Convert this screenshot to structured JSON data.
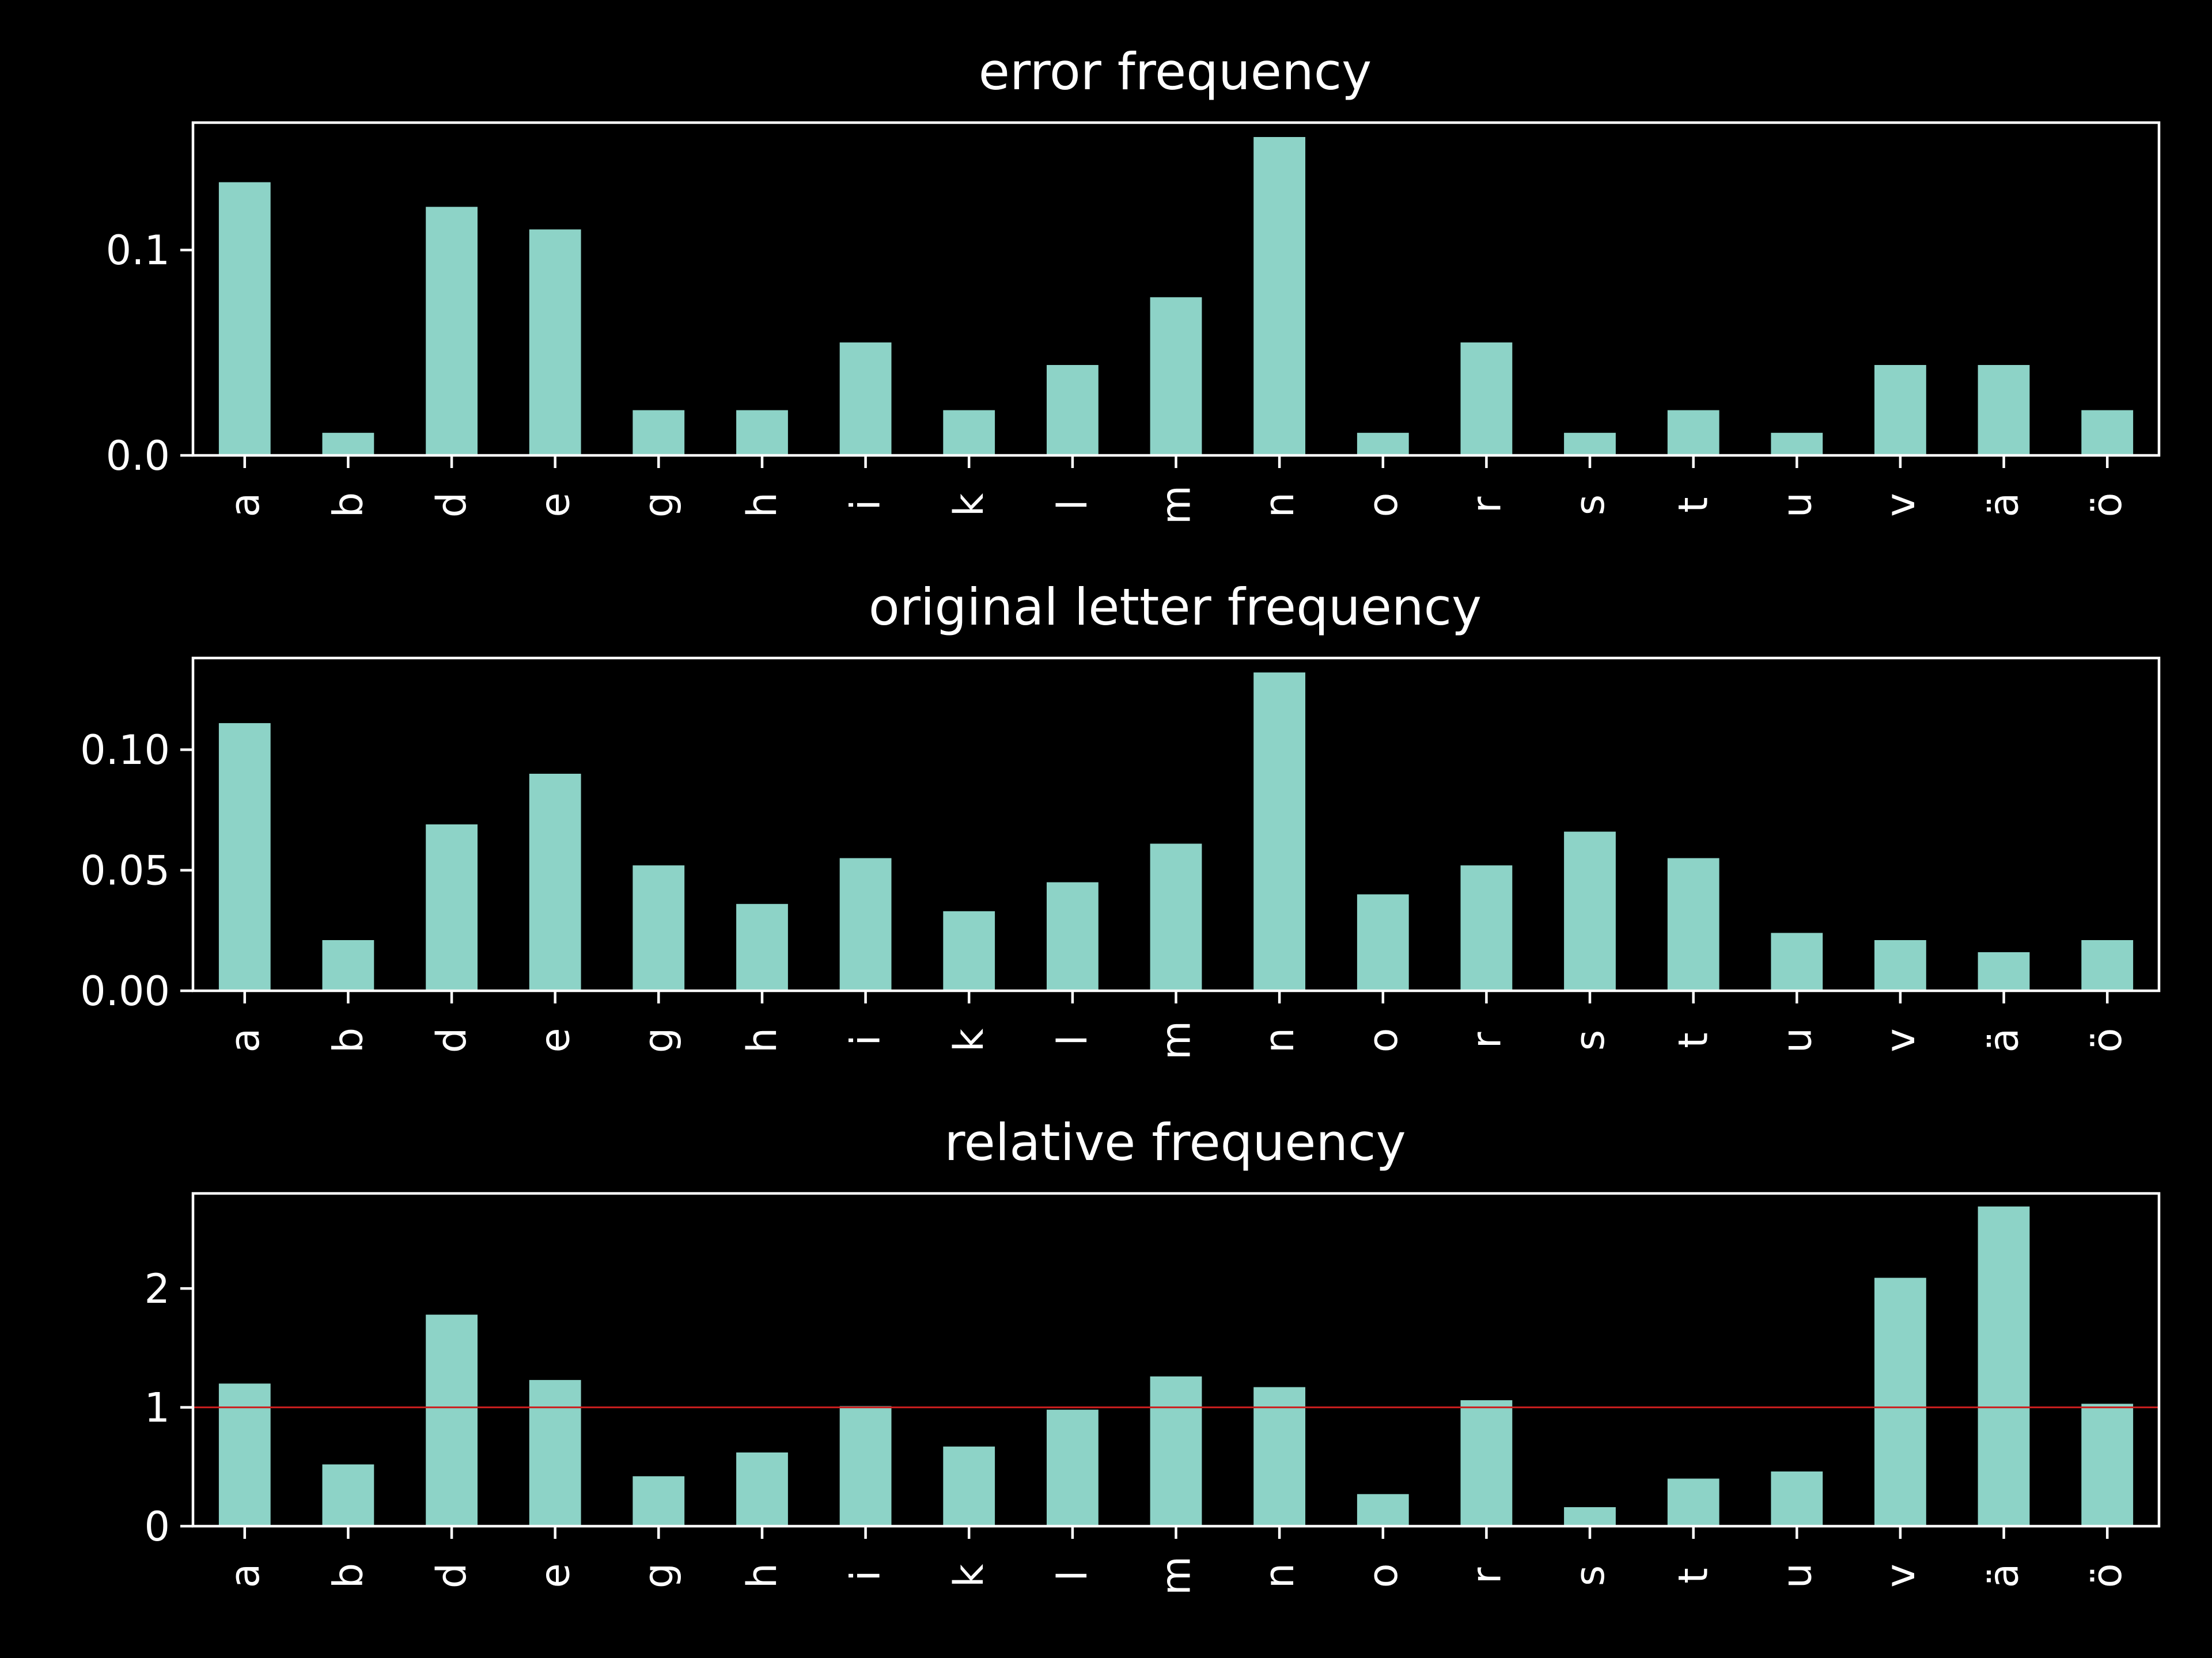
{
  "chart_data": [
    {
      "type": "bar",
      "title": "error frequency",
      "xlabel": "",
      "ylabel": "",
      "categories": [
        "a",
        "b",
        "d",
        "e",
        "g",
        "h",
        "i",
        "k",
        "l",
        "m",
        "n",
        "o",
        "r",
        "s",
        "t",
        "u",
        "v",
        "ä",
        "ö"
      ],
      "values": [
        0.133,
        0.011,
        0.121,
        0.11,
        0.022,
        0.022,
        0.055,
        0.022,
        0.044,
        0.077,
        0.155,
        0.011,
        0.055,
        0.011,
        0.022,
        0.011,
        0.044,
        0.044,
        0.022
      ],
      "ylim": [
        0,
        0.162
      ],
      "yticks": [
        0.0,
        0.1
      ],
      "ytick_labels": [
        "0.0",
        "0.1"
      ],
      "bar_color": "#8dd3c7",
      "grid": false,
      "legend": false
    },
    {
      "type": "bar",
      "title": "original letter frequency",
      "xlabel": "",
      "ylabel": "",
      "categories": [
        "a",
        "b",
        "d",
        "e",
        "g",
        "h",
        "i",
        "k",
        "l",
        "m",
        "n",
        "o",
        "r",
        "s",
        "t",
        "u",
        "v",
        "ä",
        "ö"
      ],
      "values": [
        0.111,
        0.021,
        0.069,
        0.09,
        0.052,
        0.036,
        0.055,
        0.033,
        0.045,
        0.061,
        0.132,
        0.04,
        0.052,
        0.066,
        0.055,
        0.024,
        0.021,
        0.016,
        0.021
      ],
      "ylim": [
        0,
        0.138
      ],
      "yticks": [
        0.0,
        0.05,
        0.1
      ],
      "ytick_labels": [
        "0.00",
        "0.05",
        "0.10"
      ],
      "bar_color": "#8dd3c7",
      "grid": false,
      "legend": false
    },
    {
      "type": "bar",
      "title": "relative frequency",
      "xlabel": "",
      "ylabel": "",
      "categories": [
        "a",
        "b",
        "d",
        "e",
        "g",
        "h",
        "i",
        "k",
        "l",
        "m",
        "n",
        "o",
        "r",
        "s",
        "t",
        "u",
        "v",
        "ä",
        "ö"
      ],
      "values": [
        1.2,
        0.52,
        1.78,
        1.23,
        0.42,
        0.62,
        1.01,
        0.67,
        0.98,
        1.26,
        1.17,
        0.27,
        1.06,
        0.16,
        0.4,
        0.46,
        2.09,
        2.69,
        1.03
      ],
      "ylim": [
        0,
        2.8
      ],
      "yticks": [
        0,
        1,
        2
      ],
      "ytick_labels": [
        "0",
        "1",
        "2"
      ],
      "bar_color": "#8dd3c7",
      "reference_line": {
        "y": 1,
        "color": "#cc1f1f"
      },
      "grid": false,
      "legend": false
    }
  ]
}
